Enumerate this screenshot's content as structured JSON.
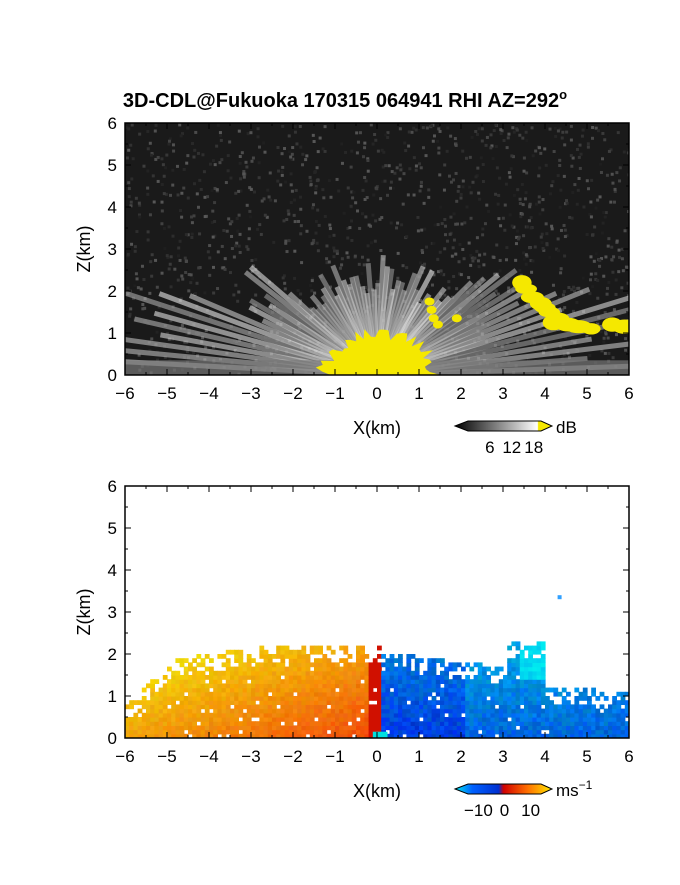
{
  "figure": {
    "title": "3D-CDL@Fukuoka 170315 064941 RHI AZ=292",
    "title_degree": "o"
  },
  "colors": {
    "highlight": "#f5e800",
    "background": "#ffffff"
  },
  "chart_data": [
    {
      "type": "heatmap",
      "field": "reflectivity",
      "xlabel": "X(km)",
      "ylabel": "Z(km)",
      "xlim": [
        -6,
        6
      ],
      "ylim": [
        0,
        6
      ],
      "xticks": [
        -6,
        -5,
        -4,
        -3,
        -2,
        -1,
        0,
        1,
        2,
        3,
        4,
        5,
        6
      ],
      "yticks": [
        0,
        1,
        2,
        3,
        4,
        5,
        6
      ],
      "grid": false,
      "colorbar": {
        "unit": "dB",
        "tick_labels": [
          "6",
          "12",
          "18"
        ],
        "tick_values": [
          6,
          12,
          18
        ],
        "range": [
          0,
          20
        ],
        "colors": [
          "#000000",
          "#ffffff",
          "#f5e800"
        ]
      },
      "regions": [
        {
          "label": "strong echo near radar (>18 dB)",
          "x_range": [
            -1.3,
            1.5
          ],
          "z_range": [
            0,
            1.1
          ]
        },
        {
          "label": "strong echo aloft (>18 dB)",
          "x_range": [
            3.3,
            5.9
          ],
          "z_range": [
            1.0,
            2.3
          ]
        },
        {
          "label": "strong echo patch (>18 dB)",
          "x_range": [
            1.0,
            2.1
          ],
          "z_range": [
            1.1,
            1.9
          ]
        }
      ]
    },
    {
      "type": "heatmap",
      "field": "doppler_velocity",
      "xlabel": "X(km)",
      "ylabel": "Z(km)",
      "xlim": [
        -6,
        6
      ],
      "ylim": [
        0,
        6
      ],
      "xticks": [
        -6,
        -5,
        -4,
        -3,
        -2,
        -1,
        0,
        1,
        2,
        3,
        4,
        5,
        6
      ],
      "yticks": [
        0,
        1,
        2,
        3,
        4,
        5,
        6
      ],
      "grid": false,
      "colorbar": {
        "unit": "ms",
        "unit_exponent": "−1",
        "tick_labels": [
          "−10",
          "0",
          "10"
        ],
        "tick_values": [
          -10,
          0,
          10
        ],
        "range": [
          -14,
          14
        ],
        "colors": [
          "#00e8f0",
          "#0040f0",
          "#e00000",
          "#ff7000",
          "#ffe800"
        ]
      },
      "regions": [
        {
          "label": "receding flow (positive)",
          "x_range": [
            -6,
            0
          ],
          "z_range": [
            0,
            2.4
          ],
          "value_range": [
            6,
            12
          ]
        },
        {
          "label": "approaching flow (negative)",
          "x_range": [
            0,
            6
          ],
          "z_range": [
            0,
            2.2
          ],
          "value_range": [
            -12,
            -6
          ]
        }
      ]
    }
  ]
}
